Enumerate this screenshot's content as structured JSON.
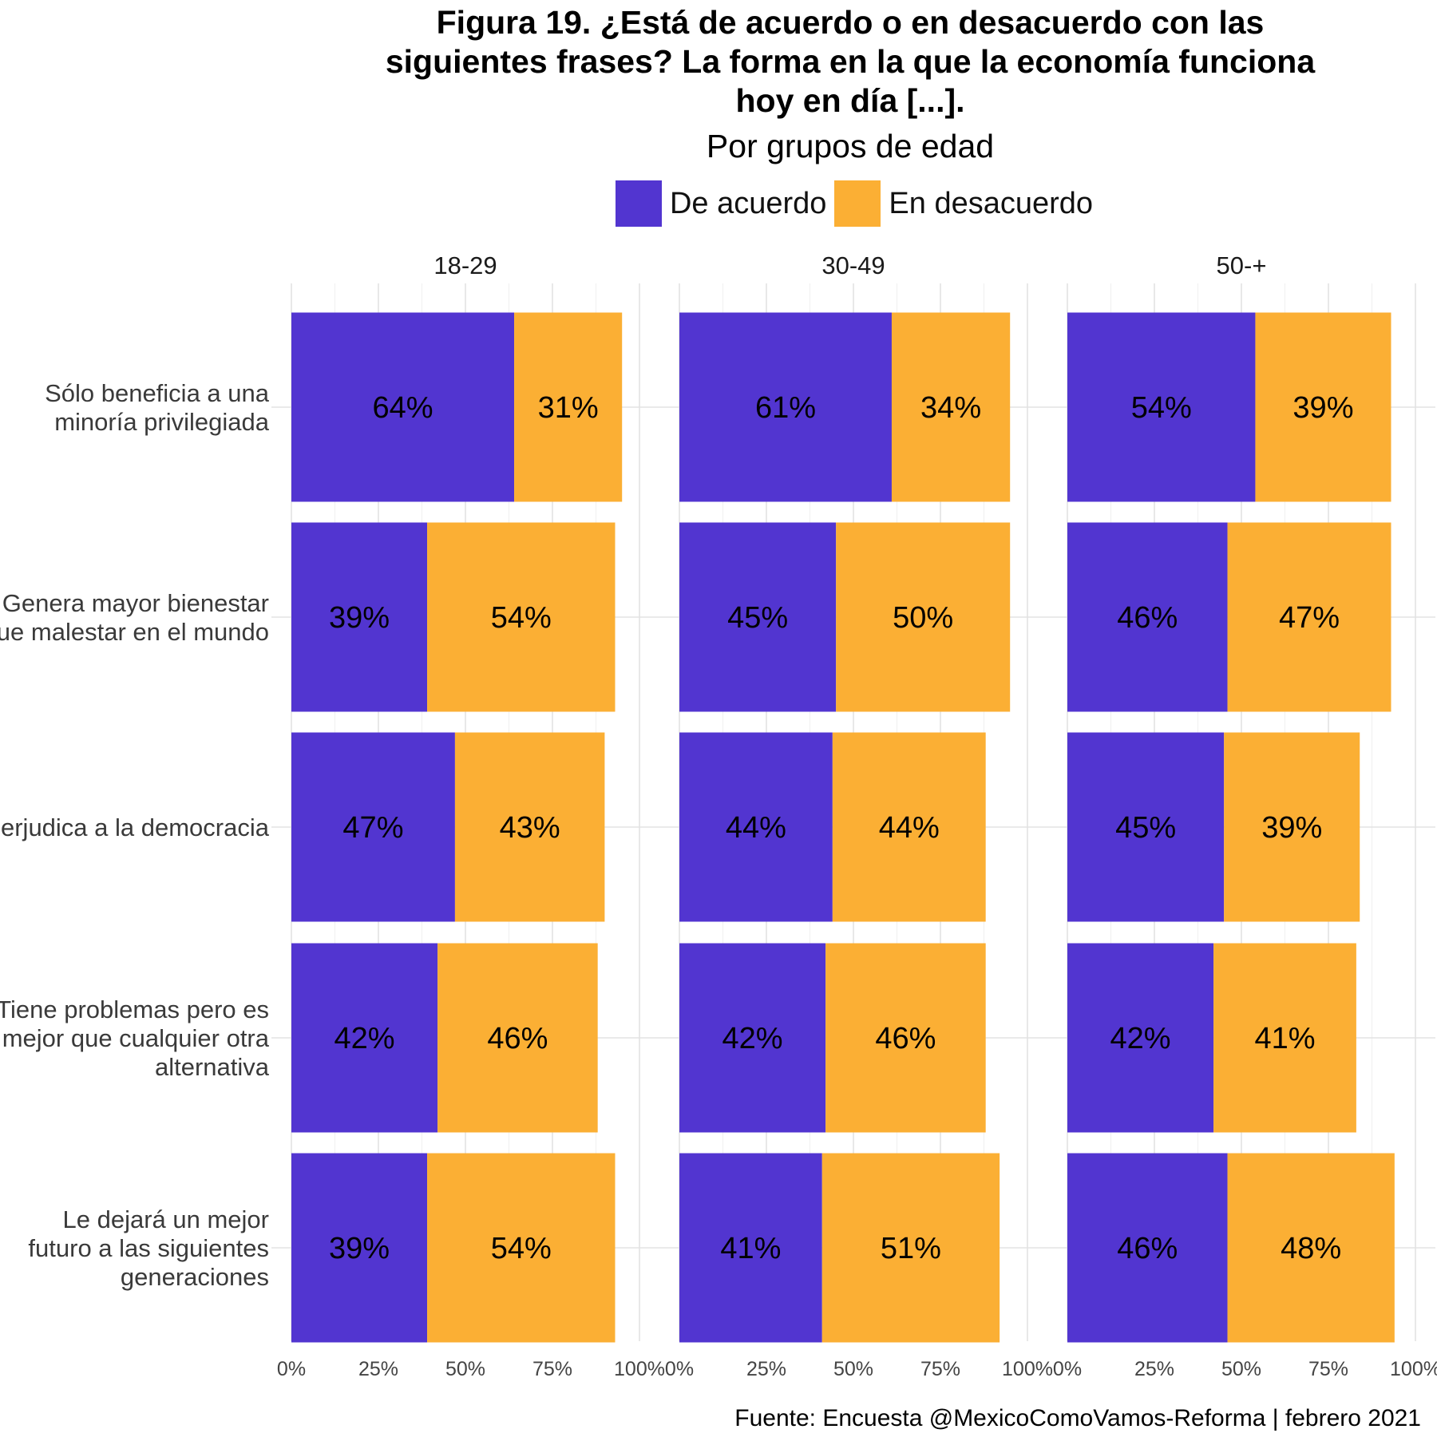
{
  "title_lines": [
    "Figura 19. ¿Está de acuerdo o en desacuerdo con las",
    "siguientes frases? La forma en la que la economía funciona",
    "hoy en día [...]."
  ],
  "subtitle": "Por grupos de edad",
  "caption": "Fuente: Encuesta @MexicoComoVamos-Reforma | febrero 2021",
  "colors": {
    "de_acuerdo": "#5235D0",
    "en_desacuerdo": "#FBAF34"
  },
  "chart_data": {
    "type": "bar",
    "orientation": "horizontal",
    "stacked": true,
    "legend_position": "top",
    "grid": true,
    "xlim": [
      0,
      100
    ],
    "x_ticks": [
      "0%",
      "25%",
      "50%",
      "75%",
      "100%"
    ],
    "categories": [
      "Sólo beneficia a una minoría privilegiada",
      "Genera mayor bienestar que malestar en el mundo",
      "Perjudica a la democracia",
      "Tiene problemas pero es mejor que cualquier otra alternativa",
      "Le dejará un mejor futuro a las siguientes generaciones"
    ],
    "category_label_lines": [
      [
        "Sólo beneficia a una",
        "minoría privilegiada"
      ],
      [
        "Genera mayor bienestar",
        "que malestar en el mundo"
      ],
      [
        "Perjudica a la democracia"
      ],
      [
        "Tiene problemas pero es",
        "mejor que cualquier otra",
        "alternativa"
      ],
      [
        "Le dejará un mejor",
        "futuro a las siguientes",
        "generaciones"
      ]
    ],
    "legend": [
      "De acuerdo",
      "En desacuerdo"
    ],
    "facets": [
      {
        "name": "18-29",
        "series": [
          {
            "name": "De acuerdo",
            "values": [
              64,
              39,
              47,
              42,
              39
            ]
          },
          {
            "name": "En desacuerdo",
            "values": [
              31,
              54,
              43,
              46,
              54
            ]
          }
        ]
      },
      {
        "name": "30-49",
        "series": [
          {
            "name": "De acuerdo",
            "values": [
              61,
              45,
              44,
              42,
              41
            ]
          },
          {
            "name": "En desacuerdo",
            "values": [
              34,
              50,
              44,
              46,
              51
            ]
          }
        ]
      },
      {
        "name": "50-+",
        "series": [
          {
            "name": "De acuerdo",
            "values": [
              54,
              46,
              45,
              42,
              46
            ]
          },
          {
            "name": "En desacuerdo",
            "values": [
              39,
              47,
              39,
              41,
              48
            ]
          }
        ]
      }
    ]
  }
}
